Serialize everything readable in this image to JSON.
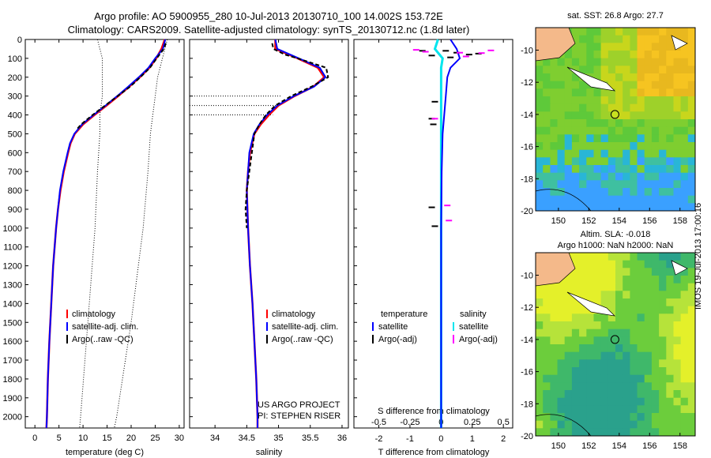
{
  "header": {
    "title1": "Argo profile: AO 5900955_280 10-Jul-2013 20130710_100 14.002S 153.72E",
    "title2": "Climatology: CARS2009. Satellite-adjusted climatology: synTS_20130712.nc (1.8d later)"
  },
  "footer": {
    "imos_stamp": "IMOS 19-Jul-2013 17:00:16"
  },
  "colors": {
    "climatology": "#ff0000",
    "satellite": "#0000ff",
    "argo": "#000000",
    "salinity_sat": "#00e5ee",
    "salinity_argo": "#ff00ff"
  },
  "chart_data": [
    {
      "type": "line",
      "name": "temperature-panel",
      "xlabel": "temperature (deg C)",
      "xlim": [
        -2,
        31
      ],
      "xticks": [
        0,
        5,
        10,
        15,
        20,
        25,
        30
      ],
      "ylim": [
        0,
        2060
      ],
      "yticks": [
        0,
        100,
        200,
        300,
        400,
        500,
        600,
        700,
        800,
        900,
        1000,
        1100,
        1200,
        1300,
        1400,
        1500,
        1600,
        1700,
        1800,
        1900,
        2000
      ],
      "legend": [
        "climatology",
        "satellite-adj. clim.",
        "Argo(..raw -QC)"
      ],
      "depth": [
        0,
        50,
        100,
        150,
        200,
        250,
        300,
        350,
        400,
        450,
        500,
        550,
        600,
        700,
        800,
        900,
        1000,
        1200,
        1400,
        1600,
        1800,
        2000,
        2060
      ],
      "series": [
        {
          "name": "climatology",
          "values": [
            27.0,
            26.3,
            25.2,
            23.8,
            21.8,
            19.6,
            17.3,
            14.9,
            12.4,
            10.0,
            8.3,
            7.4,
            6.9,
            6.0,
            5.3,
            4.8,
            4.4,
            3.8,
            3.4,
            3.0,
            2.7,
            2.5,
            2.4
          ]
        },
        {
          "name": "satellite-adj. clim.",
          "values": [
            27.1,
            26.6,
            25.0,
            23.6,
            21.6,
            19.4,
            17.1,
            14.7,
            12.2,
            9.8,
            8.2,
            7.3,
            6.8,
            5.9,
            5.2,
            4.8,
            4.4,
            3.8,
            3.4,
            3.0,
            2.7,
            2.5,
            2.4
          ]
        },
        {
          "name": "Argo(..raw -QC)",
          "depth": [
            20,
            50,
            100,
            150,
            200,
            250,
            300,
            350,
            400,
            450,
            480
          ],
          "values": [
            27.2,
            26.8,
            25.3,
            23.9,
            21.9,
            19.8,
            17.2,
            14.6,
            12.0,
            9.6,
            8.6
          ]
        }
      ],
      "bounds": {
        "depth": [
          0,
          100,
          200,
          300,
          400,
          500,
          700,
          1000,
          1500,
          2000,
          2060
        ],
        "lower": [
          13.0,
          14.0,
          14.0,
          14.0,
          13.5,
          13.5,
          13.0,
          12.5,
          11.0,
          9.5,
          9.3
        ],
        "upper": [
          27.5,
          26.5,
          25.5,
          25.0,
          24.5,
          24.0,
          23.5,
          22.5,
          20.0,
          17.0,
          16.5
        ]
      },
      "annotations": []
    },
    {
      "type": "line",
      "name": "salinity-panel",
      "xlabel": "salinity",
      "xlim": [
        33.6,
        36.1
      ],
      "xticks": [
        34,
        34.5,
        35,
        35.5,
        36
      ],
      "ylim": [
        0,
        2060
      ],
      "legend": [
        "climatology",
        "satellite-adj. clim.",
        "Argo(..raw -QC)"
      ],
      "depth": [
        0,
        50,
        100,
        150,
        200,
        250,
        300,
        350,
        400,
        450,
        500,
        600,
        700,
        800,
        1000,
        1200,
        1400,
        1600,
        1800,
        2000,
        2060
      ],
      "series": [
        {
          "name": "climatology",
          "values": [
            34.95,
            34.95,
            35.3,
            35.62,
            35.72,
            35.55,
            35.25,
            35.0,
            34.85,
            34.72,
            34.62,
            34.55,
            34.52,
            34.5,
            34.52,
            34.55,
            34.59,
            34.62,
            34.65,
            34.67,
            34.67
          ]
        },
        {
          "name": "satellite-adj. clim.",
          "values": [
            34.95,
            34.98,
            35.32,
            35.65,
            35.74,
            35.56,
            35.24,
            34.98,
            34.82,
            34.7,
            34.61,
            34.54,
            34.52,
            34.5,
            34.52,
            34.55,
            34.59,
            34.62,
            34.65,
            34.67,
            34.67
          ]
        },
        {
          "name": "Argo(..raw -QC)",
          "depth": [
            20,
            50,
            80,
            100,
            150,
            200,
            250,
            300,
            350,
            400,
            450,
            500,
            800,
            900,
            1000
          ],
          "values": [
            34.9,
            34.92,
            35.1,
            35.3,
            35.75,
            35.78,
            35.52,
            35.2,
            34.95,
            34.8,
            34.7,
            34.62,
            34.5,
            34.48,
            34.5
          ]
        }
      ],
      "annotations": [
        "US ARGO PROJECT",
        "PI: STEPHEN RISER"
      ]
    },
    {
      "type": "line",
      "name": "difference-panel",
      "xlabel": "T difference from climatology",
      "xlabel_top": "S difference from climatology",
      "xlim": [
        -2.8,
        2.3
      ],
      "xticks": [
        -2,
        -1,
        0,
        1,
        2
      ],
      "xticks_top": [
        "-0.5",
        "-0.25",
        "0",
        "0.25",
        "0.5"
      ],
      "ylim": [
        0,
        2060
      ],
      "legend_headers": [
        "temperature",
        "salinity"
      ],
      "legend": [
        "satellite",
        "Argo(-adj)",
        "satellite",
        "Argo(-adj)"
      ],
      "depth": [
        0,
        50,
        100,
        150,
        200,
        300,
        400,
        500,
        700,
        1000,
        1500,
        2000,
        2060
      ],
      "series": [
        {
          "name": "T satellite",
          "values": [
            0.3,
            0.5,
            0.6,
            0.3,
            0.2,
            0.15,
            0.1,
            0.05,
            0.02,
            0.0,
            0.0,
            0.0,
            0.0
          ]
        },
        {
          "name": "S satellite",
          "values": [
            -0.1,
            -0.2,
            0.05,
            0.0,
            0.0,
            0.0,
            0.0,
            0.0,
            0.0,
            0.0,
            0.0,
            0.0,
            0.0
          ]
        }
      ]
    },
    {
      "type": "heatmap",
      "name": "sst-map",
      "title": "sat. SST: 26.8 Argo: 27.7",
      "xticks": [
        150,
        152,
        154,
        156,
        158
      ],
      "yticks": [
        -10,
        -12,
        -14,
        -16,
        -18,
        -20
      ],
      "xlim": [
        148.5,
        159
      ],
      "ylim": [
        -20,
        -8.6
      ],
      "float_position": {
        "lon": 153.72,
        "lat": -14.002
      }
    },
    {
      "type": "heatmap",
      "name": "sla-map",
      "title": "Altim. SLA: -0.018",
      "subtitle": "Argo h1000: NaN h2000: NaN",
      "xticks": [
        150,
        152,
        154,
        156,
        158
      ],
      "yticks": [
        -10,
        -12,
        -14,
        -16,
        -18,
        -20
      ],
      "xlim": [
        148.5,
        159
      ],
      "ylim": [
        -20,
        -8.6
      ],
      "float_position": {
        "lon": 153.72,
        "lat": -14.002
      }
    }
  ]
}
